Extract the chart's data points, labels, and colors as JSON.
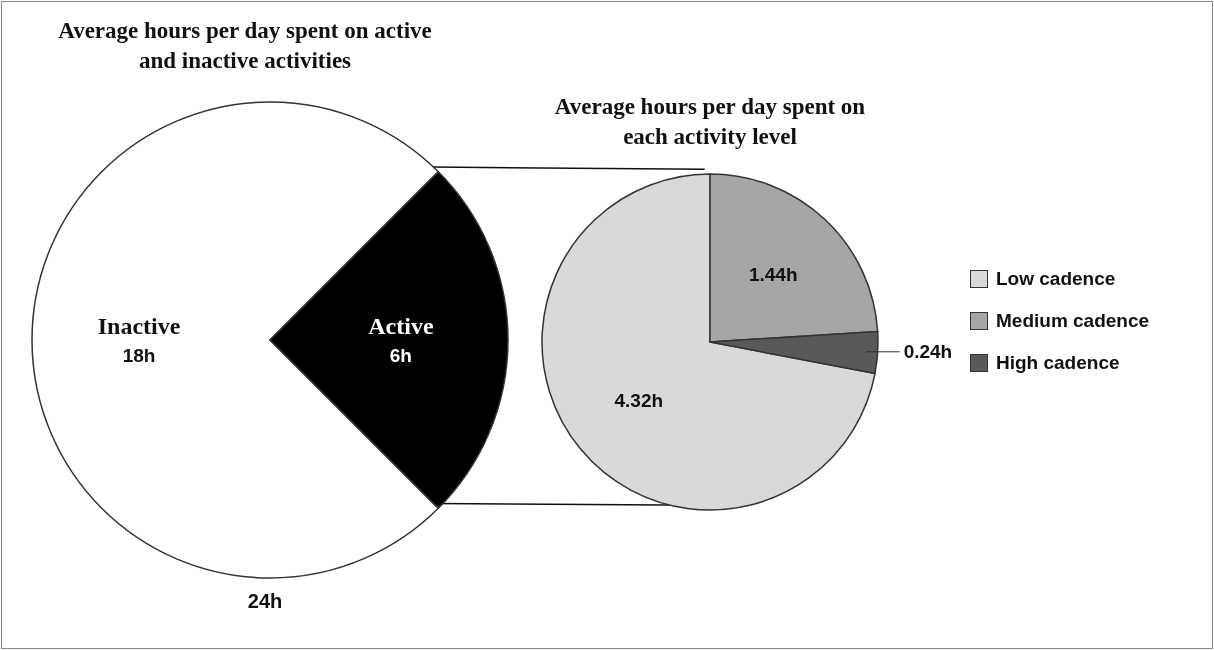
{
  "chart_data": [
    {
      "type": "pie",
      "title": "Average hours per day spent on active and inactive activities",
      "categories": [
        "Inactive",
        "Active"
      ],
      "values": [
        18,
        6
      ],
      "colors": [
        "#ffffff",
        "#000000"
      ],
      "value_labels": [
        "18h",
        "6h"
      ],
      "annotations": [
        "24h"
      ],
      "legend": false
    },
    {
      "type": "pie",
      "title": "Average hours per day spent on each activity level",
      "categories": [
        "Low cadence",
        "Medium cadence",
        "High cadence"
      ],
      "values": [
        4.32,
        1.44,
        0.24
      ],
      "colors": [
        "#d9d9d9",
        "#a6a6a6",
        "#595959"
      ],
      "value_labels": [
        "4.32h",
        "1.44h",
        "0.24h"
      ],
      "legend": "right"
    }
  ]
}
